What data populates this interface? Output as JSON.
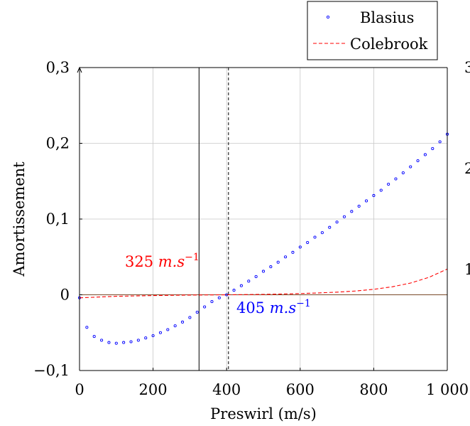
{
  "chart_data": {
    "type": "scatter",
    "xlabel": "Preswirl (m/s)",
    "ylabel": "Amortissement",
    "xlim": [
      0,
      1000
    ],
    "ylim": [
      -0.1,
      0.3
    ],
    "grid": true,
    "legend_position": "top-right",
    "x_ticks": [
      {
        "value": 0,
        "label": "0"
      },
      {
        "value": 200,
        "label": "200"
      },
      {
        "value": 400,
        "label": "400"
      },
      {
        "value": 600,
        "label": "600"
      },
      {
        "value": 800,
        "label": "800"
      },
      {
        "value": 1000,
        "label": "1 000"
      }
    ],
    "y_ticks": [
      {
        "value": -0.1,
        "label": "−0,1"
      },
      {
        "value": 0,
        "label": "0"
      },
      {
        "value": 0.1,
        "label": "0,1"
      },
      {
        "value": 0.2,
        "label": "0,2"
      },
      {
        "value": 0.3,
        "label": "0,3"
      }
    ],
    "right_axis_tick_labels": [
      {
        "value": 1,
        "label": "1"
      },
      {
        "value": 2,
        "label": "2"
      },
      {
        "value": 3,
        "label": "3"
      }
    ],
    "right_axis_range": [
      0,
      3
    ],
    "series": [
      {
        "name": "Blasius",
        "style": "dots",
        "color": "#0000ff",
        "x": [
          0,
          20,
          40,
          60,
          80,
          100,
          120,
          140,
          160,
          180,
          200,
          220,
          240,
          260,
          280,
          300,
          320,
          340,
          360,
          380,
          400,
          420,
          440,
          460,
          480,
          500,
          520,
          540,
          560,
          580,
          600,
          620,
          640,
          660,
          680,
          700,
          720,
          740,
          760,
          780,
          800,
          820,
          840,
          860,
          880,
          900,
          920,
          940,
          960,
          980,
          1000
        ],
        "y": [
          -0.004,
          -0.043,
          -0.055,
          -0.06,
          -0.063,
          -0.064,
          -0.063,
          -0.062,
          -0.06,
          -0.057,
          -0.054,
          -0.05,
          -0.046,
          -0.041,
          -0.036,
          -0.03,
          -0.023,
          -0.016,
          -0.009,
          -0.004,
          0.0,
          0.006,
          0.012,
          0.018,
          0.024,
          0.031,
          0.037,
          0.043,
          0.05,
          0.056,
          0.063,
          0.069,
          0.076,
          0.082,
          0.089,
          0.096,
          0.103,
          0.11,
          0.117,
          0.124,
          0.131,
          0.138,
          0.146,
          0.153,
          0.161,
          0.169,
          0.177,
          0.185,
          0.193,
          0.202,
          0.212
        ]
      },
      {
        "name": "Colebrook",
        "style": "dashed",
        "color": "#ff0000",
        "x": [
          0,
          50,
          100,
          150,
          200,
          250,
          300,
          350,
          400,
          450,
          500,
          550,
          600,
          650,
          700,
          750,
          800,
          850,
          900,
          950,
          1000
        ],
        "y": [
          -0.004,
          -0.003,
          -0.002,
          -0.0015,
          -0.001,
          -0.0007,
          -0.0004,
          -0.0002,
          0.0,
          0.0003,
          0.0006,
          0.001,
          0.0016,
          0.0024,
          0.0035,
          0.005,
          0.0072,
          0.0105,
          0.0155,
          0.023,
          0.034
        ]
      }
    ],
    "reference_lines": [
      {
        "type": "horizontal",
        "y": 0,
        "color": "#7a4a2a",
        "style": "solid"
      },
      {
        "type": "vertical",
        "x": 325,
        "color": "#000000",
        "style": "solid"
      },
      {
        "type": "vertical",
        "x": 405,
        "color": "#000000",
        "style": "dashed"
      }
    ],
    "annotations": [
      {
        "id": "ann-colebrook",
        "value": "325",
        "unit": "m.s",
        "exponent": "−1",
        "color": "#ff0000"
      },
      {
        "id": "ann-blasius",
        "value": "405",
        "unit": "m.s",
        "exponent": "−1",
        "color": "#0000ff"
      }
    ]
  }
}
